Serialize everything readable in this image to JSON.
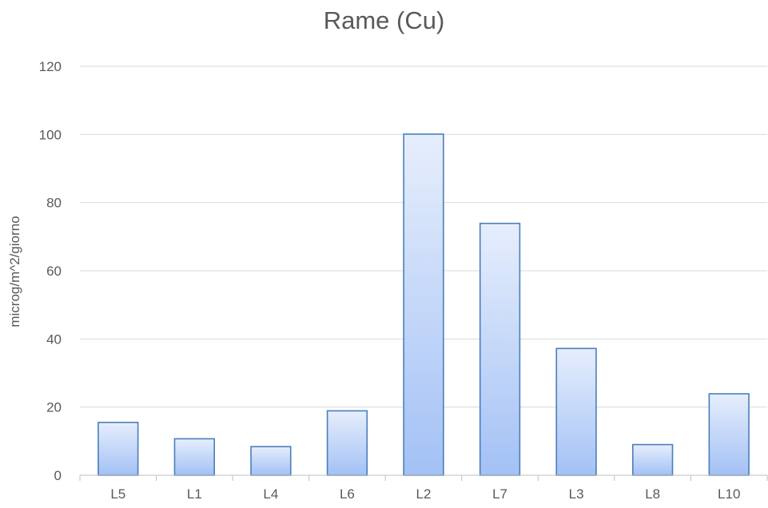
{
  "chart_data": {
    "type": "bar",
    "title": "Rame (Cu)",
    "xlabel": "",
    "ylabel": "microg/m^2/giorno",
    "categories": [
      "L5",
      "L1",
      "L4",
      "L6",
      "L2",
      "L7",
      "L3",
      "L8",
      "L10"
    ],
    "values": [
      15.5,
      10.7,
      8.4,
      18.9,
      100.1,
      73.9,
      37.2,
      9.0,
      23.9
    ],
    "ylim": [
      0,
      120
    ],
    "yticks": [
      0,
      20,
      40,
      60,
      80,
      100,
      120
    ],
    "grid": true,
    "legend": "none",
    "colors": {
      "bar_fill_top": "#e6eefc",
      "bar_fill_bottom": "#a3c1f5",
      "bar_border": "#4a7ebb",
      "gridline": "#d9d9d9",
      "axis_line": "#bfbfbf",
      "text": "#595959"
    }
  }
}
